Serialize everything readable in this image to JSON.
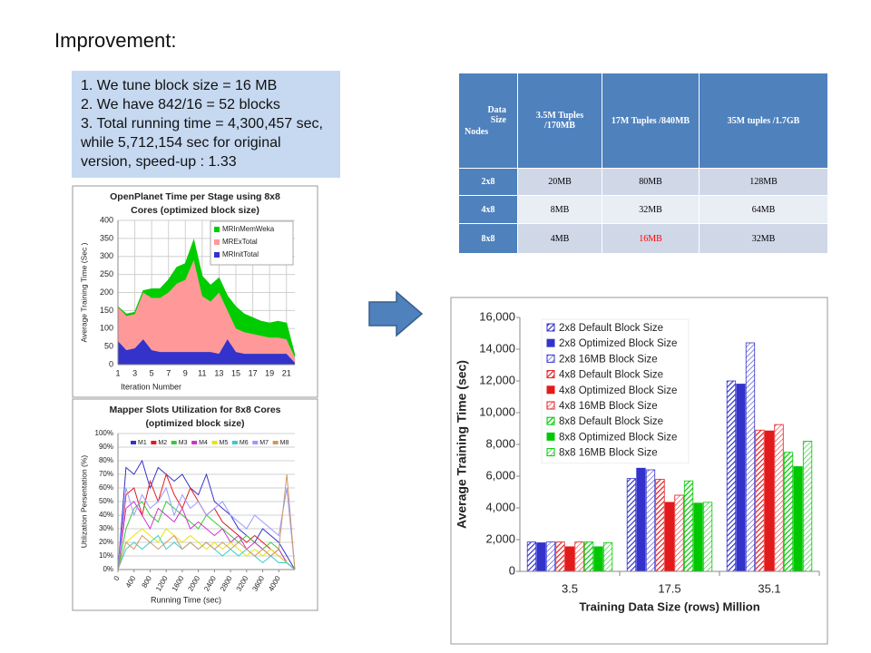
{
  "title": "Improvement:",
  "notes": [
    "1. We tune block size = 16 MB",
    "2. We have 842/16 = 52 blocks",
    "3. Total running time = 4,300,457 sec, while 5,712,154 sec for original version, speed-up : 1.33"
  ],
  "table": {
    "corner": {
      "top": "Data Size",
      "bottom": "Nodes"
    },
    "header": [
      "3.5M Tuples /170MB",
      "17M Tuples /840MB",
      "35M tuples /1.7GB"
    ],
    "rows": [
      [
        "2x8",
        "20MB",
        "80MB",
        "128MB"
      ],
      [
        "4x8",
        "8MB",
        "32MB",
        "64MB"
      ],
      [
        "8x8",
        "4MB",
        "16MB",
        "32MB"
      ]
    ],
    "highlight": {
      "row": 2,
      "col": 2,
      "color": "#ff0000"
    }
  },
  "chart_data": [
    {
      "type": "area",
      "stacked": true,
      "title": [
        "OpenPlanet Time per Stage using 8x8",
        "Cores (optimized block size)"
      ],
      "ylabel": "Average Training Time (Sec )",
      "xlabel": "Iteration Number",
      "x": [
        1,
        2,
        3,
        4,
        5,
        6,
        7,
        8,
        9,
        10,
        11,
        12,
        13,
        14,
        15,
        16,
        17,
        18,
        19,
        20,
        21,
        22
      ],
      "series": [
        {
          "name": "MRInMemWeka",
          "color": "#00cc00",
          "values": [
            0,
            5,
            5,
            5,
            25,
            25,
            35,
            45,
            45,
            55,
            55,
            45,
            40,
            40,
            60,
            50,
            45,
            40,
            40,
            45,
            45,
            5
          ]
        },
        {
          "name": "MRExTotal",
          "color": "#ff9999",
          "values": [
            95,
            95,
            95,
            130,
            145,
            150,
            165,
            190,
            200,
            255,
            155,
            140,
            170,
            80,
            65,
            60,
            55,
            50,
            45,
            45,
            40,
            15
          ]
        },
        {
          "name": "MRInitTotal",
          "color": "#3333cc",
          "values": [
            65,
            40,
            45,
            70,
            40,
            35,
            35,
            35,
            35,
            35,
            35,
            35,
            30,
            70,
            35,
            30,
            30,
            30,
            30,
            30,
            30,
            5
          ]
        }
      ],
      "xlim": [
        1,
        22
      ],
      "xticks": [
        1,
        3,
        5,
        7,
        9,
        11,
        13,
        15,
        17,
        19,
        21
      ],
      "ylim": [
        0,
        400
      ],
      "yticks": [
        0,
        50,
        100,
        150,
        200,
        250,
        300,
        350,
        400
      ],
      "grid": true,
      "legend": "upper right"
    },
    {
      "type": "line",
      "title": [
        "Mapper Slots Utilization  for 8x8 Cores",
        "(optimized block size)"
      ],
      "ylabel": "Utilization Persentation (%)",
      "xlabel": "Running Time (sec)",
      "x": [
        0,
        200,
        400,
        600,
        800,
        1000,
        1200,
        1400,
        1600,
        1800,
        2000,
        2200,
        2400,
        2600,
        2800,
        3000,
        3200,
        3400,
        3600,
        3800,
        4000,
        4200,
        4400
      ],
      "series": [
        {
          "name": "M1",
          "color": "#3333cc",
          "values": [
            0,
            75,
            70,
            80,
            60,
            75,
            70,
            65,
            70,
            60,
            55,
            70,
            50,
            45,
            40,
            30,
            25,
            20,
            30,
            25,
            20,
            10,
            0
          ]
        },
        {
          "name": "M2",
          "color": "#e31a1c",
          "values": [
            0,
            55,
            60,
            40,
            65,
            50,
            70,
            55,
            45,
            60,
            50,
            40,
            45,
            35,
            30,
            25,
            20,
            25,
            20,
            15,
            10,
            5,
            0
          ]
        },
        {
          "name": "M3",
          "color": "#33cc33",
          "values": [
            0,
            30,
            45,
            50,
            40,
            35,
            50,
            45,
            40,
            35,
            30,
            40,
            35,
            30,
            25,
            20,
            25,
            20,
            15,
            20,
            15,
            5,
            0
          ]
        },
        {
          "name": "M4",
          "color": "#cc33cc",
          "values": [
            0,
            45,
            50,
            40,
            30,
            45,
            40,
            35,
            45,
            30,
            35,
            30,
            25,
            30,
            20,
            25,
            15,
            20,
            15,
            10,
            15,
            5,
            0
          ]
        },
        {
          "name": "M5",
          "color": "#e6e600",
          "values": [
            0,
            20,
            25,
            30,
            25,
            20,
            30,
            25,
            20,
            25,
            20,
            15,
            20,
            15,
            20,
            15,
            10,
            15,
            10,
            15,
            10,
            5,
            0
          ]
        },
        {
          "name": "M6",
          "color": "#33cccc",
          "values": [
            0,
            15,
            20,
            15,
            20,
            25,
            15,
            20,
            15,
            20,
            15,
            20,
            15,
            10,
            15,
            10,
            15,
            10,
            5,
            10,
            5,
            5,
            0
          ]
        },
        {
          "name": "M7",
          "color": "#9999ff",
          "values": [
            0,
            60,
            40,
            55,
            45,
            50,
            60,
            40,
            55,
            45,
            50,
            40,
            45,
            50,
            40,
            35,
            30,
            40,
            35,
            30,
            25,
            60,
            0
          ]
        },
        {
          "name": "M8",
          "color": "#cc9966",
          "values": [
            0,
            20,
            15,
            25,
            20,
            15,
            20,
            25,
            15,
            20,
            15,
            20,
            15,
            20,
            15,
            20,
            15,
            10,
            15,
            10,
            15,
            70,
            0
          ]
        }
      ],
      "xlim": [
        0,
        4400
      ],
      "xticks": [
        0,
        400,
        800,
        1200,
        1600,
        2000,
        2400,
        2800,
        3200,
        3600,
        4000
      ],
      "ylim": [
        0,
        100
      ],
      "yticks": [
        {
          "value": 0,
          "label": "0%"
        },
        {
          "value": 10,
          "label": "10%"
        },
        {
          "value": 20,
          "label": "20%"
        },
        {
          "value": 30,
          "label": "30%"
        },
        {
          "value": 40,
          "label": "40%"
        },
        {
          "value": 50,
          "label": "50%"
        },
        {
          "value": 60,
          "label": "60%"
        },
        {
          "value": 70,
          "label": "70%"
        },
        {
          "value": 80,
          "label": "80%"
        },
        {
          "value": 90,
          "label": "90%"
        },
        {
          "value": 100,
          "label": "100%"
        }
      ],
      "grid": true,
      "legend": "top"
    },
    {
      "type": "bar",
      "ylabel": "Average Training Time (sec)",
      "xlabel": "Training Data Size (rows) Million",
      "categories": [
        "3.5",
        "17.5",
        "35.1"
      ],
      "series": [
        {
          "name": "2x8 Default Block Size",
          "color": "#3333cc",
          "pattern": "hatch",
          "values": [
            1850,
            5850,
            12000
          ]
        },
        {
          "name": "2x8 Optimized Block Size",
          "color": "#3333cc",
          "pattern": "solid",
          "values": [
            1800,
            6500,
            11800
          ]
        },
        {
          "name": "2x8 16MB Block Size",
          "color": "#3333cc",
          "pattern": "hatch-light",
          "values": [
            1850,
            6400,
            14400
          ]
        },
        {
          "name": "4x8 Default Block Size",
          "color": "#e31a1c",
          "pattern": "hatch",
          "values": [
            1850,
            5800,
            8900
          ]
        },
        {
          "name": "4x8 Optimized Block Size",
          "color": "#e31a1c",
          "pattern": "solid",
          "values": [
            1550,
            4350,
            8850
          ]
        },
        {
          "name": "4x8 16MB Block Size",
          "color": "#e31a1c",
          "pattern": "hatch-light",
          "values": [
            1850,
            4800,
            9250
          ]
        },
        {
          "name": "8x8 Default Block Size",
          "color": "#00c800",
          "pattern": "hatch",
          "values": [
            1850,
            5700,
            7500
          ]
        },
        {
          "name": "8x8 Optimized Block Size",
          "color": "#00c800",
          "pattern": "solid",
          "values": [
            1550,
            4300,
            6600
          ]
        },
        {
          "name": "8x8 16MB Block Size",
          "color": "#00c800",
          "pattern": "hatch-light",
          "values": [
            1800,
            4350,
            8200
          ]
        }
      ],
      "ylim": [
        0,
        16000
      ],
      "yticks": [
        0,
        {
          "value": 2000,
          "label": "2,000"
        },
        {
          "value": 4000,
          "label": "4,000"
        },
        {
          "value": 6000,
          "label": "6,000"
        },
        {
          "value": 8000,
          "label": "8,000"
        },
        {
          "value": 10000,
          "label": "10,000"
        },
        {
          "value": 12000,
          "label": "12,000"
        },
        {
          "value": 14000,
          "label": "14,000"
        },
        {
          "value": 16000,
          "label": "16,000"
        }
      ],
      "grid": false,
      "legend": "upper left"
    }
  ]
}
